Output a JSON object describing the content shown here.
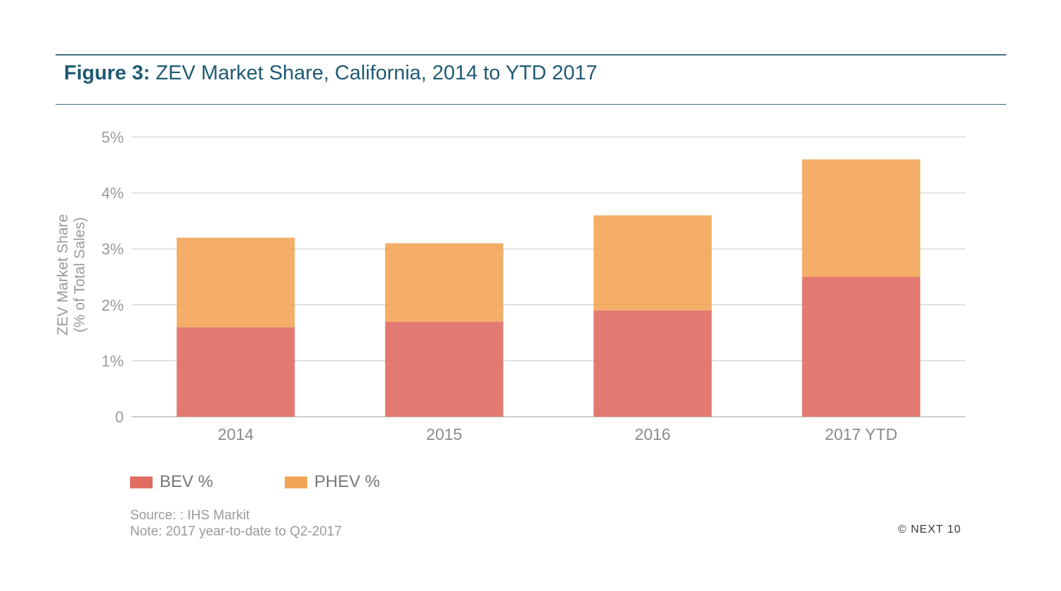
{
  "figure": {
    "label": "Figure 3:",
    "title": "ZEV Market Share, California, 2014 to YTD 2017"
  },
  "chart_data": {
    "type": "bar",
    "stacked": true,
    "categories": [
      "2014",
      "2015",
      "2016",
      "2017 YTD"
    ],
    "series": [
      {
        "name": "BEV %",
        "values": [
          1.6,
          1.7,
          1.9,
          2.5
        ],
        "color": "#e06c62"
      },
      {
        "name": "PHEV %",
        "values": [
          1.6,
          1.4,
          1.7,
          2.1
        ],
        "color": "#f3a556"
      }
    ],
    "ylabel_line1": "ZEV Market Share",
    "ylabel_line2": "(% of Total Sales)",
    "ylim": [
      0,
      5
    ],
    "yticks": [
      0,
      1,
      2,
      3,
      4,
      5
    ],
    "ytick_labels": [
      "0",
      "1%",
      "2%",
      "3%",
      "4%",
      "5%"
    ],
    "grid": true,
    "legend_position": "bottom-left"
  },
  "legend": {
    "bev_label": "BEV %",
    "phev_label": "PHEV %"
  },
  "notes": {
    "source": "Source: : IHS Markit",
    "note": "Note: 2017 year-to-date to Q2-2017"
  },
  "copyright": "© NEXT 10"
}
